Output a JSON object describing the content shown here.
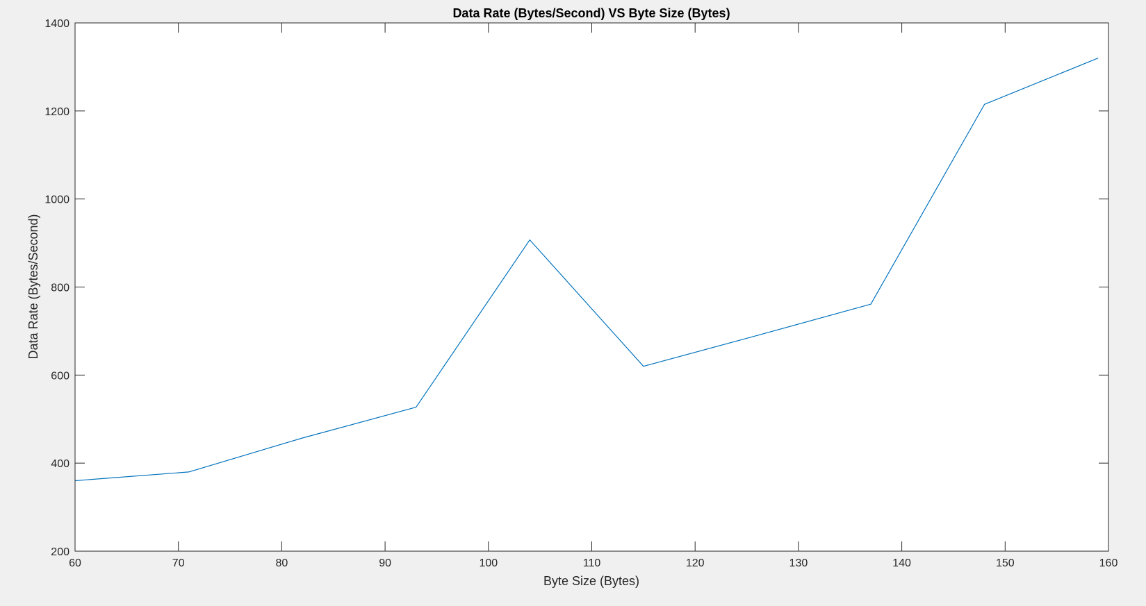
{
  "colors": {
    "figure_background": "#f0f0f0",
    "axes_background": "#ffffff",
    "axis_line": "#262626",
    "series_line": "#0072bd"
  },
  "chart_data": {
    "type": "line",
    "title": "Data Rate (Bytes/Second) VS Byte Size (Bytes)",
    "xlabel": "Byte Size (Bytes)",
    "ylabel": "Data Rate (Bytes/Second)",
    "xlim": [
      60,
      160
    ],
    "ylim": [
      200,
      1400
    ],
    "xticks": [
      60,
      70,
      80,
      90,
      100,
      110,
      120,
      130,
      140,
      150,
      160
    ],
    "yticks": [
      200,
      400,
      600,
      800,
      1000,
      1200,
      1400
    ],
    "grid": false,
    "legend": "none",
    "series": [
      {
        "name": "Data Rate",
        "x": [
          60,
          71,
          82,
          93,
          104,
          115,
          126,
          137,
          148,
          159
        ],
        "y": [
          360,
          380,
          457,
          527,
          907,
          620,
          690,
          761,
          1215,
          1320
        ]
      }
    ]
  }
}
